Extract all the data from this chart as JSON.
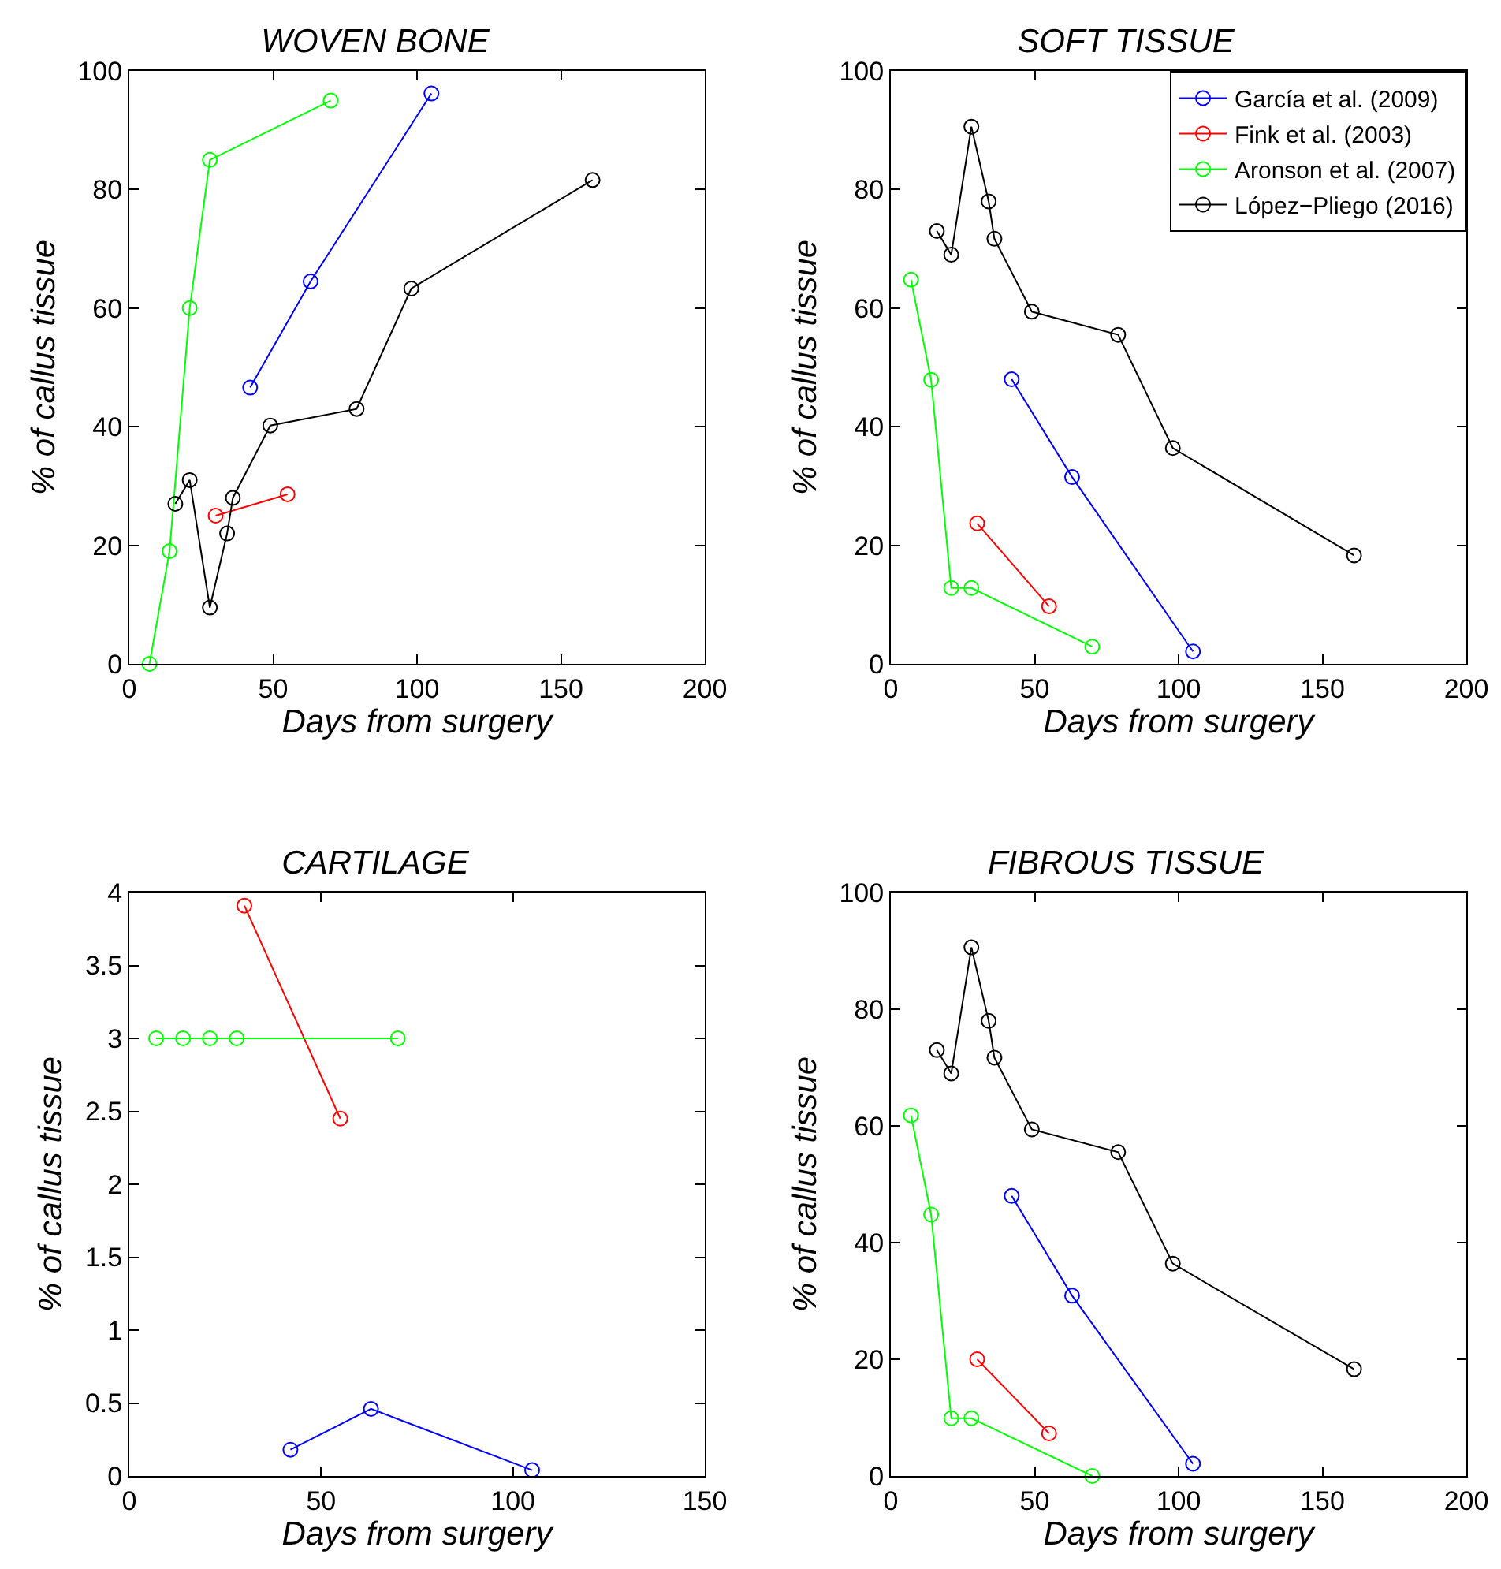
{
  "chart_data": [
    {
      "type": "line",
      "title": "WOVEN BONE",
      "xlabel": "Days from surgery",
      "ylabel": "% of callus tissue",
      "xlim": [
        0,
        200
      ],
      "xticks": [
        0,
        50,
        100,
        150,
        200
      ],
      "ylim": [
        0,
        100
      ],
      "yticks": [
        0,
        20,
        40,
        60,
        80,
        100
      ],
      "marker": "circle",
      "legend": false,
      "series": [
        {
          "color": "#0000ff",
          "x": [
            42,
            63,
            105
          ],
          "values": [
            46.6,
            64.5,
            96.2
          ]
        },
        {
          "color": "#ff0000",
          "x": [
            30,
            55
          ],
          "values": [
            25,
            28.6
          ]
        },
        {
          "color": "#00ff00",
          "x": [
            7,
            14,
            21,
            28,
            70
          ],
          "values": [
            0,
            19,
            60,
            85,
            95
          ]
        },
        {
          "color": "#000000",
          "x": [
            16,
            21,
            28,
            34,
            36,
            49,
            79,
            98,
            161
          ],
          "values": [
            27,
            31,
            9.5,
            22,
            28,
            40.2,
            43,
            63.3,
            81.6
          ]
        }
      ]
    },
    {
      "type": "line",
      "title": "SOFT TISSUE",
      "xlabel": "Days from surgery",
      "ylabel": "% of callus tissue",
      "xlim": [
        0,
        200
      ],
      "xticks": [
        0,
        50,
        100,
        150,
        200
      ],
      "ylim": [
        0,
        100
      ],
      "yticks": [
        0,
        20,
        40,
        60,
        80,
        100
      ],
      "marker": "circle",
      "legend": "top right",
      "series": [
        {
          "name": "García et al. (2009)",
          "color": "#0000ff",
          "x": [
            42,
            63,
            105
          ],
          "values": [
            48,
            31.5,
            2.1
          ]
        },
        {
          "name": "Fink et al. (2003)",
          "color": "#ff0000",
          "x": [
            30,
            55
          ],
          "values": [
            23.7,
            9.7
          ]
        },
        {
          "name": "Aronson et al. (2007)",
          "color": "#00ff00",
          "x": [
            7,
            14,
            21,
            28,
            70
          ],
          "values": [
            64.8,
            47.9,
            12.8,
            12.8,
            2.9
          ]
        },
        {
          "name": "López−Pliego (2016)",
          "color": "#000000",
          "x": [
            16,
            21,
            28,
            34,
            36,
            49,
            79,
            98,
            161
          ],
          "values": [
            73,
            69,
            90.6,
            78,
            71.7,
            59.4,
            55.5,
            36.4,
            18.3
          ]
        }
      ]
    },
    {
      "type": "line",
      "title": "CARTILAGE",
      "xlabel": "Days from surgery",
      "ylabel": "% of callus tissue",
      "xlim": [
        0,
        150
      ],
      "xticks": [
        0,
        50,
        100,
        150
      ],
      "ylim": [
        0,
        4
      ],
      "yticks": [
        0,
        0.5,
        1,
        1.5,
        2,
        2.5,
        3,
        3.5,
        4
      ],
      "marker": "circle",
      "legend": false,
      "series": [
        {
          "color": "#0000ff",
          "x": [
            42,
            63,
            105
          ],
          "values": [
            0.18,
            0.46,
            0.04
          ]
        },
        {
          "color": "#ff0000",
          "x": [
            30,
            55
          ],
          "values": [
            3.91,
            2.45
          ]
        },
        {
          "color": "#00ff00",
          "x": [
            7,
            14,
            21,
            28,
            70
          ],
          "values": [
            3,
            3,
            3,
            3,
            3
          ]
        }
      ]
    },
    {
      "type": "line",
      "title": "FIBROUS TISSUE",
      "xlabel": "Days from surgery",
      "ylabel": "% of callus tissue",
      "xlim": [
        0,
        200
      ],
      "xticks": [
        0,
        50,
        100,
        150,
        200
      ],
      "ylim": [
        0,
        100
      ],
      "yticks": [
        0,
        20,
        40,
        60,
        80,
        100
      ],
      "marker": "circle",
      "legend": false,
      "series": [
        {
          "color": "#0000ff",
          "x": [
            42,
            63,
            105
          ],
          "values": [
            48,
            30.9,
            2.1
          ]
        },
        {
          "color": "#ff0000",
          "x": [
            30,
            55
          ],
          "values": [
            20,
            7.3
          ]
        },
        {
          "color": "#00ff00",
          "x": [
            7,
            14,
            21,
            28,
            70
          ],
          "values": [
            61.8,
            44.8,
            9.9,
            9.9,
            0
          ]
        },
        {
          "color": "#000000",
          "x": [
            16,
            21,
            28,
            34,
            36,
            49,
            79,
            98,
            161
          ],
          "values": [
            73,
            69,
            90.6,
            78,
            71.7,
            59.4,
            55.5,
            36.4,
            18.3
          ]
        }
      ]
    }
  ]
}
